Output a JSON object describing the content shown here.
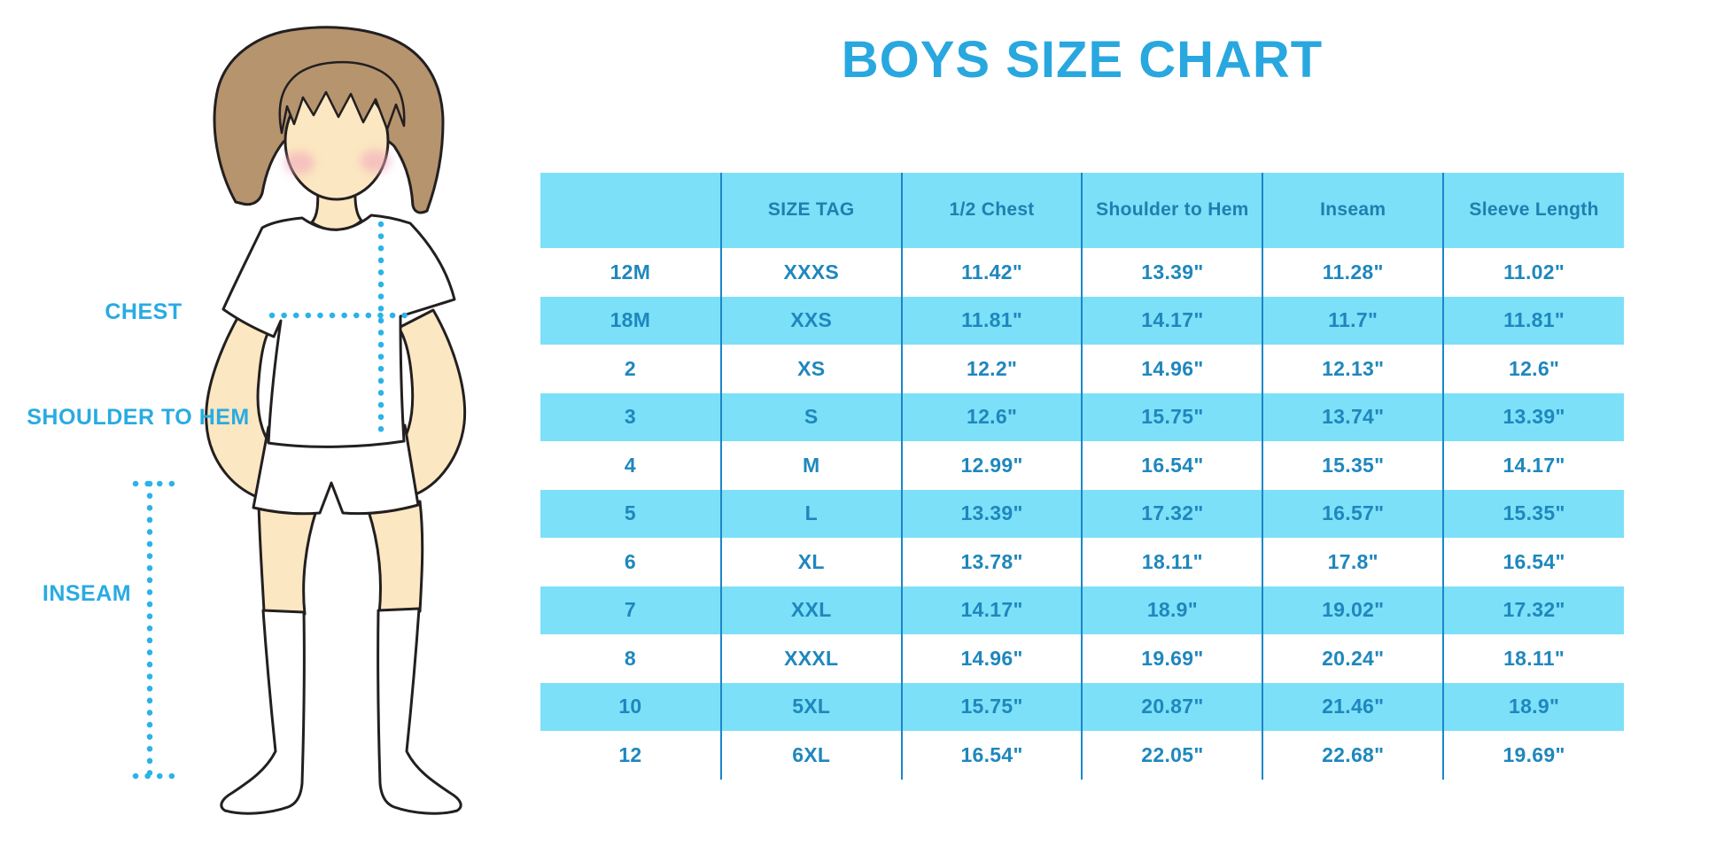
{
  "title": "BOYS SIZE CHART",
  "diagram": {
    "chest_label": "CHEST",
    "shoulder_to_hem_label": "SHOULDER TO HEM",
    "inseam_label": "INSEAM"
  },
  "chart_data": {
    "type": "table",
    "columns": [
      "",
      "SIZE TAG",
      "1/2 Chest",
      "Shoulder to Hem",
      "Inseam",
      "Sleeve Length"
    ],
    "rows": [
      [
        "12M",
        "XXXS",
        "11.42\"",
        "13.39\"",
        "11.28\"",
        "11.02\""
      ],
      [
        "18M",
        "XXS",
        "11.81\"",
        "14.17\"",
        "11.7\"",
        "11.81\""
      ],
      [
        "2",
        "XS",
        "12.2\"",
        "14.96\"",
        "12.13\"",
        "12.6\""
      ],
      [
        "3",
        "S",
        "12.6\"",
        "15.75\"",
        "13.74\"",
        "13.39\""
      ],
      [
        "4",
        "M",
        "12.99\"",
        "16.54\"",
        "15.35\"",
        "14.17\""
      ],
      [
        "5",
        "L",
        "13.39\"",
        "17.32\"",
        "16.57\"",
        "15.35\""
      ],
      [
        "6",
        "XL",
        "13.78\"",
        "18.11\"",
        "17.8\"",
        "16.54\""
      ],
      [
        "7",
        "XXL",
        "14.17\"",
        "18.9\"",
        "19.02\"",
        "17.32\""
      ],
      [
        "8",
        "XXXL",
        "14.96\"",
        "19.69\"",
        "20.24\"",
        "18.11\""
      ],
      [
        "10",
        "5XL",
        "15.75\"",
        "20.87\"",
        "21.46\"",
        "18.9\""
      ],
      [
        "12",
        "6XL",
        "16.54\"",
        "22.05\"",
        "22.68\"",
        "19.69\""
      ]
    ]
  },
  "colors": {
    "title_blue": "#29A7DF",
    "label_blue": "#29ABE2",
    "table_stripe": "#7CE0F8",
    "divider_blue": "#1C86C8",
    "header_text": "#1E7FB0",
    "table_text": "#1F87BD",
    "dotted_line": "#2BB3E8",
    "skin": "#FBE7C1",
    "hair": "#B5946E"
  }
}
